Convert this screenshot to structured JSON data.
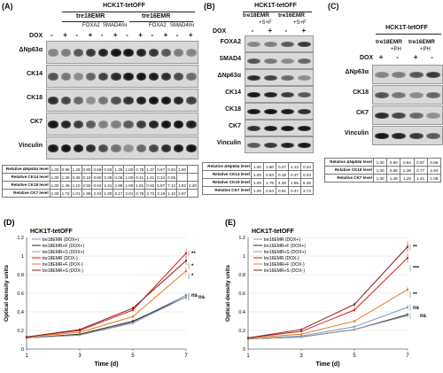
{
  "A": {
    "label": "(A)",
    "title": "HCK1T-tetOFF",
    "groups": [
      "tre18EMR",
      "tre16EMR"
    ],
    "sub_labels": [
      "FOXA2",
      "SMAD4mi",
      "FOXA2",
      "SMAD4mi"
    ],
    "dox_label": "DOX",
    "dox": [
      "-",
      "+",
      "-",
      "+",
      "-",
      "+",
      "-",
      "+",
      "-",
      "+",
      "-",
      "+"
    ],
    "blots": [
      "ΔNp63α",
      "CK14",
      "CK18",
      "CK7",
      "Vinculin"
    ],
    "table_rows": [
      {
        "label": "Relative ΔNp63α level",
        "values": [
          "1.00",
          "0.95",
          "1.28",
          "0.90",
          "0.59",
          "0.93",
          "1.39",
          "1.00",
          "0.78",
          "1.37",
          "0.67",
          "0.94",
          "1.80"
        ]
      },
      {
        "label": "Relative CK14 level",
        "values": [
          "1.00",
          "1.28",
          "0.38",
          "0.18",
          "0.90",
          "0.29",
          "0.06",
          "1.00",
          "0.41",
          "1.41",
          "0.34",
          "0.06"
        ]
      },
      {
        "label": "Relative CK18 level",
        "values": [
          "1.00",
          "1.45",
          "1.10",
          "2.50",
          "0.92",
          "2.41",
          "2.98",
          "1.00",
          "1.81",
          "0.92",
          "5.87",
          "7.12",
          "1.82",
          "4.20"
        ]
      },
      {
        "label": "Relative CK7 level",
        "values": [
          "1.00",
          "1.72",
          "1.01",
          "1.99",
          "2.43",
          "1.00",
          "2.17",
          "2.01",
          "0.79",
          "3.73",
          "3.19",
          "1.10",
          "2.87"
        ]
      }
    ]
  },
  "B": {
    "label": "(B)",
    "title": "HCK1T-tetOFF",
    "groups": [
      "tre18EMR",
      "tre16EMR"
    ],
    "sub_labels": [
      "+S+F",
      "+S+F"
    ],
    "dox_label": "DOX",
    "dox": [
      "-",
      "+",
      "-",
      "+"
    ],
    "blots": [
      "FOXA2",
      "SMAD4",
      "ΔNp63α",
      "CK14",
      "CK18",
      "CK7",
      "Vinculin"
    ],
    "table_rows": [
      {
        "label": "Relative ΔNp63α level",
        "values": [
          "1.00",
          "1.60",
          "0.27",
          "1.13",
          "0.24"
        ]
      },
      {
        "label": "Relative CK14 level",
        "values": [
          "1.00",
          "0.83",
          "0.18",
          "0.37",
          "0.23"
        ]
      },
      {
        "label": "Relative CK18 level",
        "values": [
          "1.00",
          "1.79",
          "4.28",
          "1.66",
          "6.49"
        ]
      },
      {
        "label": "Relative CK7 level",
        "values": [
          "1.00",
          "0.54",
          "0.91",
          "0.47",
          "3.73"
        ]
      }
    ]
  },
  "C": {
    "label": "(C)",
    "title": "HCK1T-tetOFF",
    "groups": [
      "tre18EMR",
      "tre16EMR"
    ],
    "sub_labels": [
      "+PH",
      "+PH"
    ],
    "dox_label": "DOX",
    "dox": [
      "+",
      "-",
      "+",
      "-"
    ],
    "blots": [
      "ΔNp63α",
      "CK18",
      "CK7",
      "Vinculin"
    ],
    "table_rows": [
      {
        "label": "Relative ΔNp63α level",
        "values": [
          "1.00",
          "0.90",
          "0.84",
          "0.97",
          "0.86"
        ]
      },
      {
        "label": "Relative CK18 level",
        "values": [
          "1.00",
          "0.88",
          "2.39",
          "0.77",
          "2.94"
        ]
      },
      {
        "label": "Relative CK7 level",
        "values": [
          "1.00",
          "1.49",
          "1.25",
          "1.41",
          "1.09"
        ]
      }
    ]
  },
  "chart_data": [
    {
      "panel": "(D)",
      "type": "line",
      "title": "HCK1T-tetOFF",
      "xlabel": "Time (d)",
      "ylabel": "Optical density units",
      "x": [
        1,
        3,
        5,
        7
      ],
      "xlim": [
        1,
        7
      ],
      "ylim": [
        0,
        1.2
      ],
      "yticks": [
        "0",
        "0.2",
        "0.4",
        "0.6",
        "0.8",
        "1",
        "1.2"
      ],
      "series": [
        {
          "name": "tre18EMR (DOX+)",
          "color": "#6f9bd1",
          "values": [
            0.12,
            0.15,
            0.29,
            0.58
          ]
        },
        {
          "name": "tre18EMR+F (DOX+)",
          "color": "#2a2a2a",
          "values": [
            0.12,
            0.16,
            0.3,
            0.56
          ]
        },
        {
          "name": "tre18EMR+S (DOX+)",
          "color": "#9a9a9a",
          "values": [
            0.12,
            0.15,
            0.28,
            0.56
          ]
        },
        {
          "name": "tre18EMR (DOX-)",
          "color": "#d42020",
          "values": [
            0.13,
            0.2,
            0.42,
            1.03
          ]
        },
        {
          "name": "tre18EMR+F (DOX-)",
          "color": "#e87b22",
          "values": [
            0.13,
            0.18,
            0.35,
            0.84
          ]
        },
        {
          "name": "tre18EMR+S (DOX-)",
          "color": "#8c1b1b",
          "values": [
            0.13,
            0.21,
            0.44,
            0.95
          ]
        }
      ],
      "annotations": [
        "**",
        "*",
        "*",
        "ns",
        "ns"
      ]
    },
    {
      "panel": "(E)",
      "type": "line",
      "title": "HCK1T-tetOFF",
      "xlabel": "Time (d)",
      "ylabel": "Optical density units",
      "x": [
        1,
        3,
        5,
        7
      ],
      "xlim": [
        1,
        7
      ],
      "ylim": [
        0,
        1.2
      ],
      "yticks": [
        "0",
        "0.2",
        "0.4",
        "0.6",
        "0.8",
        "1",
        "1.2"
      ],
      "series": [
        {
          "name": "tre16EMR (DOX+)",
          "color": "#6f9bd1",
          "values": [
            0.11,
            0.14,
            0.24,
            0.45
          ]
        },
        {
          "name": "tre16EMR+F (DOX+)",
          "color": "#2a2a2a",
          "values": [
            0.11,
            0.13,
            0.21,
            0.37
          ]
        },
        {
          "name": "tre16EMR+S (DOX+)",
          "color": "#9a9a9a",
          "values": [
            0.11,
            0.13,
            0.21,
            0.36
          ]
        },
        {
          "name": "tre16EMR (DOX-)",
          "color": "#d42020",
          "values": [
            0.12,
            0.19,
            0.42,
            0.98
          ]
        },
        {
          "name": "tre16EMR+F (DOX-)",
          "color": "#e87b22",
          "values": [
            0.12,
            0.16,
            0.3,
            0.64
          ]
        },
        {
          "name": "tre16EMR+S (DOX-)",
          "color": "#8c1b1b",
          "values": [
            0.12,
            0.21,
            0.48,
            1.1
          ]
        }
      ],
      "annotations": [
        "**",
        "***",
        "**",
        "ns",
        "ns"
      ]
    }
  ]
}
